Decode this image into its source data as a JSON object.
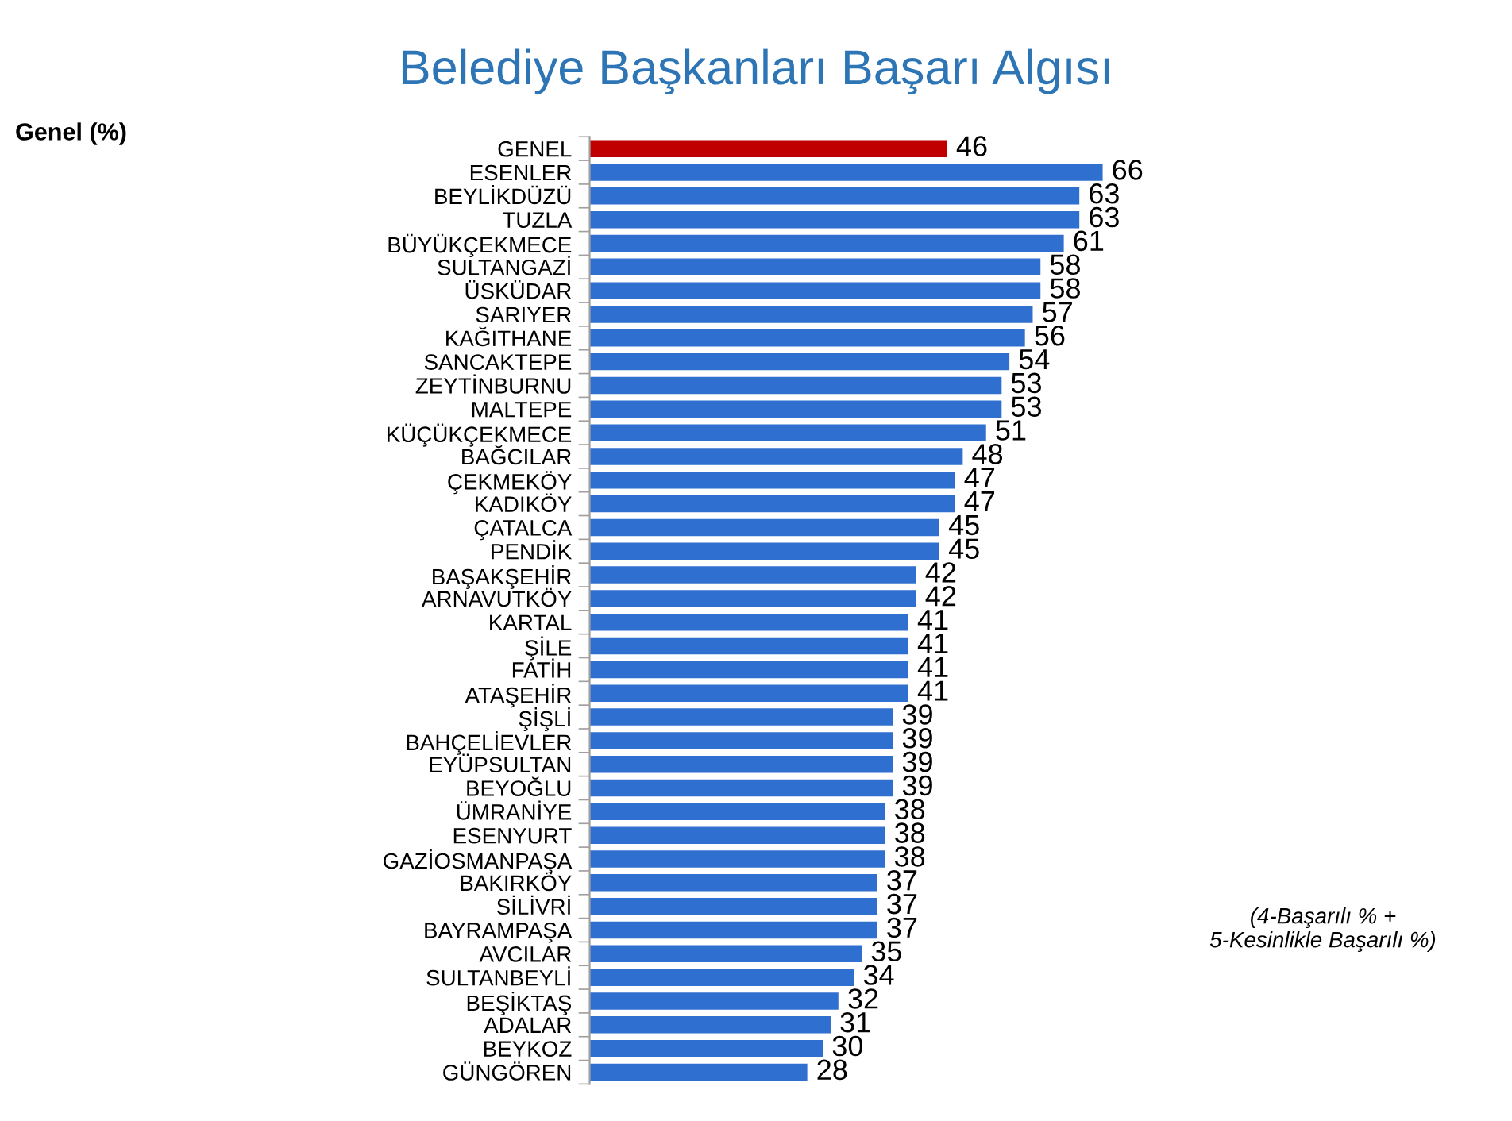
{
  "chart_data": {
    "type": "bar",
    "orientation": "horizontal",
    "title": "Belediye Başkanları Başarı Algısı",
    "categories": [
      "GENEL",
      "ESENLER",
      "BEYLİKDÜZÜ",
      "TUZLA",
      "BÜYÜKÇEKMECE",
      "SULTANGAZİ",
      "ÜSKÜDAR",
      "SARIYER",
      "KAĞITHANE",
      "SANCAKTEPE",
      "ZEYTİNBURNU",
      "MALTEPE",
      "KÜÇÜKÇEKMECE",
      "BAĞCILAR",
      "ÇEKMEKÖY",
      "KADIKÖY",
      "ÇATALCA",
      "PENDİK",
      "BAŞAKŞEHİR",
      "ARNAVUTKÖY",
      "KARTAL",
      "ŞİLE",
      "FATİH",
      "ATAŞEHİR",
      "ŞİŞLİ",
      "BAHÇELİEVLER",
      "EYÜPSULTAN",
      "BEYOĞLU",
      "ÜMRANİYE",
      "ESENYURT",
      "GAZİOSMANPAŞA",
      "BAKIRKÖY",
      "SİLİVRİ",
      "BAYRAMPAŞA",
      "AVCILAR",
      "SULTANBEYLİ",
      "BEŞİKTAŞ",
      "ADALAR",
      "BEYKOZ",
      "GÜNGÖREN"
    ],
    "values": [
      46,
      66,
      63,
      63,
      61,
      58,
      58,
      57,
      56,
      54,
      53,
      53,
      51,
      48,
      47,
      47,
      45,
      45,
      42,
      42,
      41,
      41,
      41,
      41,
      39,
      39,
      39,
      39,
      38,
      38,
      38,
      37,
      37,
      37,
      35,
      34,
      32,
      31,
      30,
      28
    ],
    "colors": [
      "#c00000",
      "#2e6fcf",
      "#2e6fcf",
      "#2e6fcf",
      "#2e6fcf",
      "#2e6fcf",
      "#2e6fcf",
      "#2e6fcf",
      "#2e6fcf",
      "#2e6fcf",
      "#2e6fcf",
      "#2e6fcf",
      "#2e6fcf",
      "#2e6fcf",
      "#2e6fcf",
      "#2e6fcf",
      "#2e6fcf",
      "#2e6fcf",
      "#2e6fcf",
      "#2e6fcf",
      "#2e6fcf",
      "#2e6fcf",
      "#2e6fcf",
      "#2e6fcf",
      "#2e6fcf",
      "#2e6fcf",
      "#2e6fcf",
      "#2e6fcf",
      "#2e6fcf",
      "#2e6fcf",
      "#2e6fcf",
      "#2e6fcf",
      "#2e6fcf",
      "#2e6fcf",
      "#2e6fcf",
      "#2e6fcf",
      "#2e6fcf",
      "#2e6fcf",
      "#2e6fcf",
      "#2e6fcf"
    ],
    "data_labels": true,
    "annotations": [
      "Genel (%)",
      "(4-Başarılı % +\n5-Kesinlikle Başarılı %)"
    ]
  }
}
